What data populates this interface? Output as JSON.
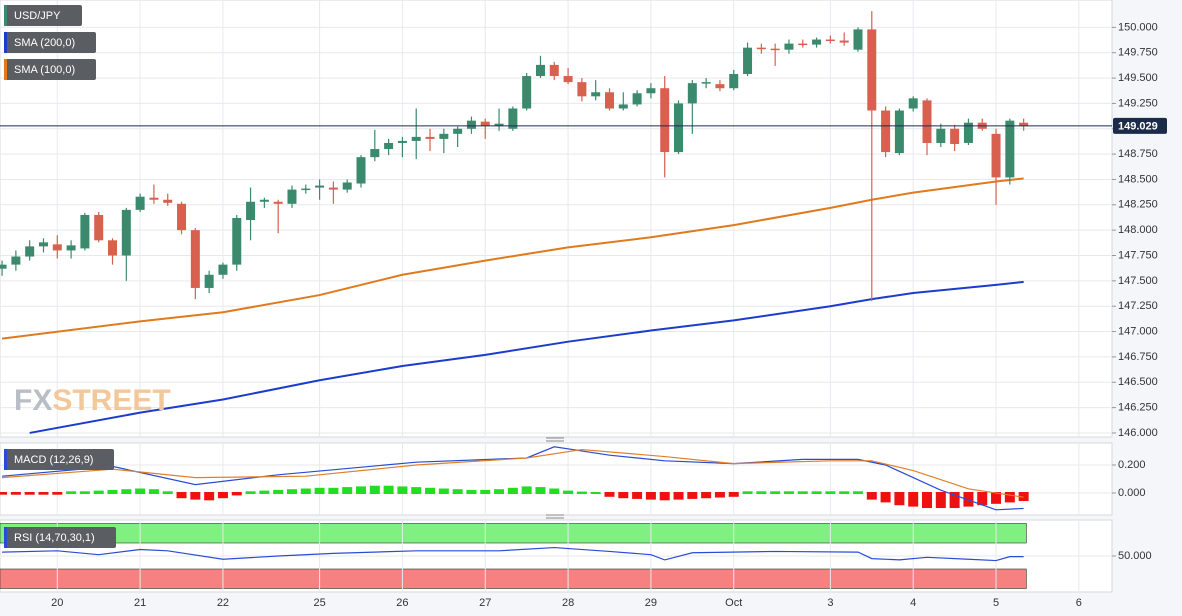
{
  "chart_data": [
    {
      "type": "candlestick",
      "title": "USD/JPY",
      "up_color": "#3b8a6e",
      "down_color": "#d8604f",
      "watermark": [
        "FX",
        "STREET"
      ],
      "xlim": [
        -0.15,
        80.4
      ],
      "ylim": [
        145.96,
        150.27
      ],
      "xticks": [
        {
          "value": 4,
          "label": "20"
        },
        {
          "value": 10,
          "label": "21"
        },
        {
          "value": 16,
          "label": "22"
        },
        {
          "value": 23,
          "label": "25"
        },
        {
          "value": 29,
          "label": "26"
        },
        {
          "value": 35,
          "label": "27"
        },
        {
          "value": 41,
          "label": "28"
        },
        {
          "value": 47,
          "label": "29"
        },
        {
          "value": 53,
          "label": "Oct"
        },
        {
          "value": 60,
          "label": "3"
        },
        {
          "value": 66,
          "label": "4"
        },
        {
          "value": 72,
          "label": "5"
        },
        {
          "value": 78,
          "label": "6"
        }
      ],
      "yticks": [
        {
          "value": 146,
          "label": "146.000"
        },
        {
          "value": 146.25,
          "label": "146.250"
        },
        {
          "value": 146.5,
          "label": "146.500"
        },
        {
          "value": 146.75,
          "label": "146.750"
        },
        {
          "value": 147,
          "label": "147.000"
        },
        {
          "value": 147.25,
          "label": "147.250"
        },
        {
          "value": 147.5,
          "label": "147.500"
        },
        {
          "value": 147.75,
          "label": "147.750"
        },
        {
          "value": 148,
          "label": "148.000"
        },
        {
          "value": 148.25,
          "label": "148.250"
        },
        {
          "value": 148.5,
          "label": "148.500"
        },
        {
          "value": 148.75,
          "label": "148.750"
        },
        {
          "value": 149,
          "label": "149.000"
        },
        {
          "value": 149.25,
          "label": "149.250"
        },
        {
          "value": 149.5,
          "label": "149.500"
        },
        {
          "value": 149.75,
          "label": "149.750"
        },
        {
          "value": 150,
          "label": "150.000"
        }
      ],
      "last_price": {
        "value": 149.029,
        "label": "149.029"
      },
      "ohlc": [
        [
          147.62,
          147.7,
          147.55,
          147.66
        ],
        [
          147.66,
          147.8,
          147.6,
          147.74
        ],
        [
          147.74,
          147.9,
          147.7,
          147.84
        ],
        [
          147.84,
          147.92,
          147.78,
          147.88
        ],
        [
          147.86,
          147.95,
          147.72,
          147.8
        ],
        [
          147.8,
          147.9,
          147.72,
          147.85
        ],
        [
          147.82,
          148.17,
          147.8,
          148.15
        ],
        [
          148.15,
          148.18,
          147.88,
          147.9
        ],
        [
          147.9,
          147.92,
          147.66,
          147.75
        ],
        [
          147.75,
          148.22,
          147.5,
          148.2
        ],
        [
          148.2,
          148.36,
          148.18,
          148.33
        ],
        [
          148.32,
          148.45,
          148.26,
          148.3
        ],
        [
          148.3,
          148.36,
          148.24,
          148.27
        ],
        [
          148.26,
          148.28,
          147.96,
          148.0
        ],
        [
          148.0,
          148.02,
          147.32,
          147.43
        ],
        [
          147.43,
          147.6,
          147.38,
          147.56
        ],
        [
          147.56,
          147.68,
          147.52,
          147.66
        ],
        [
          147.66,
          148.15,
          147.6,
          148.12
        ],
        [
          148.1,
          148.42,
          147.9,
          148.28
        ],
        [
          148.28,
          148.32,
          148.22,
          148.3
        ],
        [
          148.28,
          148.3,
          147.97,
          148.26
        ],
        [
          148.26,
          148.44,
          148.22,
          148.4
        ],
        [
          148.4,
          148.45,
          148.36,
          148.41
        ],
        [
          148.42,
          148.5,
          148.3,
          148.44
        ],
        [
          148.42,
          148.48,
          148.26,
          148.4
        ],
        [
          148.4,
          148.5,
          148.37,
          148.47
        ],
        [
          148.46,
          148.74,
          148.42,
          148.72
        ],
        [
          148.72,
          148.99,
          148.68,
          148.8
        ],
        [
          148.8,
          148.9,
          148.74,
          148.86
        ],
        [
          148.86,
          148.92,
          148.72,
          148.88
        ],
        [
          148.88,
          149.2,
          148.7,
          148.92
        ],
        [
          148.92,
          149.0,
          148.78,
          148.9
        ],
        [
          148.9,
          149.0,
          148.76,
          148.95
        ],
        [
          148.95,
          149.02,
          148.82,
          149.0
        ],
        [
          149.0,
          149.12,
          148.95,
          149.08
        ],
        [
          149.07,
          149.1,
          148.9,
          149.03
        ],
        [
          149.03,
          149.2,
          148.98,
          149.05
        ],
        [
          149.0,
          149.22,
          148.98,
          149.2
        ],
        [
          149.2,
          149.55,
          149.18,
          149.52
        ],
        [
          149.52,
          149.72,
          149.5,
          149.63
        ],
        [
          149.63,
          149.66,
          149.48,
          149.52
        ],
        [
          149.52,
          149.6,
          149.44,
          149.46
        ],
        [
          149.46,
          149.5,
          149.27,
          149.32
        ],
        [
          149.32,
          149.48,
          149.28,
          149.36
        ],
        [
          149.36,
          149.4,
          149.18,
          149.2
        ],
        [
          149.2,
          149.36,
          149.18,
          149.24
        ],
        [
          149.24,
          149.38,
          149.22,
          149.35
        ],
        [
          149.35,
          149.45,
          149.3,
          149.4
        ],
        [
          149.4,
          149.52,
          148.52,
          148.77
        ],
        [
          148.77,
          149.28,
          148.75,
          149.25
        ],
        [
          149.25,
          149.48,
          148.95,
          149.45
        ],
        [
          149.45,
          149.5,
          149.4,
          149.46
        ],
        [
          149.44,
          149.48,
          149.37,
          149.4
        ],
        [
          149.4,
          149.58,
          149.38,
          149.54
        ],
        [
          149.54,
          149.85,
          149.52,
          149.8
        ],
        [
          149.8,
          149.84,
          149.74,
          149.79
        ],
        [
          149.79,
          149.84,
          149.62,
          149.78
        ],
        [
          149.78,
          149.88,
          149.74,
          149.84
        ],
        [
          149.84,
          149.88,
          149.8,
          149.83
        ],
        [
          149.83,
          149.9,
          149.8,
          149.88
        ],
        [
          149.88,
          149.92,
          149.84,
          149.87
        ],
        [
          149.87,
          149.95,
          149.82,
          149.85
        ],
        [
          149.78,
          150.0,
          149.76,
          149.98
        ],
        [
          149.98,
          150.16,
          147.3,
          149.18
        ],
        [
          149.18,
          149.22,
          148.72,
          148.77
        ],
        [
          148.76,
          149.2,
          148.74,
          149.18
        ],
        [
          149.2,
          149.32,
          149.17,
          149.3
        ],
        [
          149.28,
          149.3,
          148.74,
          148.86
        ],
        [
          148.86,
          149.05,
          148.82,
          149.0
        ],
        [
          149.0,
          149.04,
          148.78,
          148.85
        ],
        [
          148.86,
          149.1,
          148.84,
          149.06
        ],
        [
          149.06,
          149.1,
          148.98,
          149.0
        ],
        [
          148.95,
          149.0,
          148.25,
          148.52
        ],
        [
          148.52,
          149.1,
          148.45,
          149.08
        ],
        [
          149.06,
          149.1,
          148.98,
          149.03
        ]
      ],
      "series": [
        {
          "name": "SMA (200,0)",
          "color": "#1c3ccc",
          "x": [
            2,
            10,
            16,
            23,
            29,
            35,
            41,
            47,
            53,
            60,
            63,
            66,
            72,
            74
          ],
          "values": [
            146.0,
            146.2,
            146.33,
            146.52,
            146.66,
            146.77,
            146.9,
            147.01,
            147.11,
            147.25,
            147.32,
            147.38,
            147.46,
            147.49
          ]
        },
        {
          "name": "SMA (100,0)",
          "color": "#e07a1c",
          "x": [
            0,
            10,
            16,
            23,
            29,
            35,
            41,
            47,
            53,
            60,
            63,
            66,
            72,
            74
          ],
          "values": [
            146.93,
            147.1,
            147.19,
            147.36,
            147.56,
            147.7,
            147.83,
            147.93,
            148.05,
            148.22,
            148.3,
            148.37,
            148.48,
            148.51
          ]
        }
      ]
    },
    {
      "type": "macd",
      "title": "MACD (12,26,9)",
      "up_color": "#22dd22",
      "down_color": "#ee1111",
      "xlim": [
        -0.15,
        80.4
      ],
      "ylim": [
        -0.157,
        0.357
      ],
      "yticks": [
        {
          "value": 0.2,
          "label": "0.200"
        },
        {
          "value": 0,
          "label": "0.000"
        }
      ],
      "histogram": [
        -0.005,
        -0.005,
        -0.005,
        -0.005,
        -0.005,
        0.005,
        0.005,
        0.01,
        0.015,
        0.02,
        0.025,
        0.02,
        0.005,
        -0.03,
        -0.04,
        -0.045,
        -0.03,
        -0.01,
        0.005,
        0.01,
        0.015,
        0.02,
        0.025,
        0.03,
        0.03,
        0.035,
        0.04,
        0.045,
        0.045,
        0.04,
        0.035,
        0.03,
        0.025,
        0.02,
        0.015,
        0.015,
        0.02,
        0.03,
        0.04,
        0.035,
        0.025,
        0.01,
        0.003,
        0.0,
        -0.02,
        -0.03,
        -0.035,
        -0.04,
        -0.045,
        -0.04,
        -0.035,
        -0.03,
        -0.025,
        -0.02,
        0.005,
        0.005,
        0.005,
        0.005,
        0.005,
        0.005,
        0.005,
        0.005,
        0.005,
        -0.04,
        -0.06,
        -0.08,
        -0.09,
        -0.1,
        -0.1,
        -0.1,
        -0.09,
        -0.08,
        -0.07,
        -0.06,
        -0.05
      ],
      "series": [
        {
          "color": "#2b4bd6",
          "x": [
            0,
            8,
            14,
            20,
            30,
            38,
            40,
            44,
            48,
            53,
            58,
            62,
            64,
            68,
            72,
            74
          ],
          "values": [
            0.12,
            0.19,
            0.06,
            0.13,
            0.22,
            0.25,
            0.33,
            0.27,
            0.23,
            0.21,
            0.24,
            0.24,
            0.2,
            0.02,
            -0.12,
            -0.11
          ]
        },
        {
          "color": "#e0802a",
          "x": [
            0,
            8,
            14,
            22,
            30,
            38,
            42,
            48,
            53,
            60,
            63,
            66,
            70,
            74
          ],
          "values": [
            0.11,
            0.17,
            0.11,
            0.12,
            0.2,
            0.25,
            0.31,
            0.26,
            0.21,
            0.23,
            0.23,
            0.16,
            0.03,
            -0.03
          ]
        }
      ]
    },
    {
      "type": "line",
      "title": "RSI (14,70,30,1)",
      "xlim": [
        -0.15,
        80.4
      ],
      "ylim": [
        0,
        100
      ],
      "yticks": [
        {
          "value": 50,
          "label": "50.000"
        }
      ],
      "bands": [
        {
          "from": 70,
          "to": 100,
          "color": "#80f080"
        },
        {
          "from": 0,
          "to": 30,
          "color": "#f78080"
        }
      ],
      "series": [
        {
          "color": "#2b4bd6",
          "x": [
            0,
            4,
            7,
            10,
            12,
            16,
            20,
            24,
            30,
            36,
            40,
            44,
            47,
            48,
            50,
            56,
            62,
            63,
            65,
            67,
            70,
            72,
            73,
            74
          ],
          "values": [
            56,
            58,
            52,
            60,
            58,
            45,
            50,
            54,
            58,
            58,
            63,
            57,
            52,
            44,
            55,
            57,
            56,
            46,
            44,
            48,
            45,
            43,
            49,
            49
          ]
        }
      ]
    }
  ]
}
